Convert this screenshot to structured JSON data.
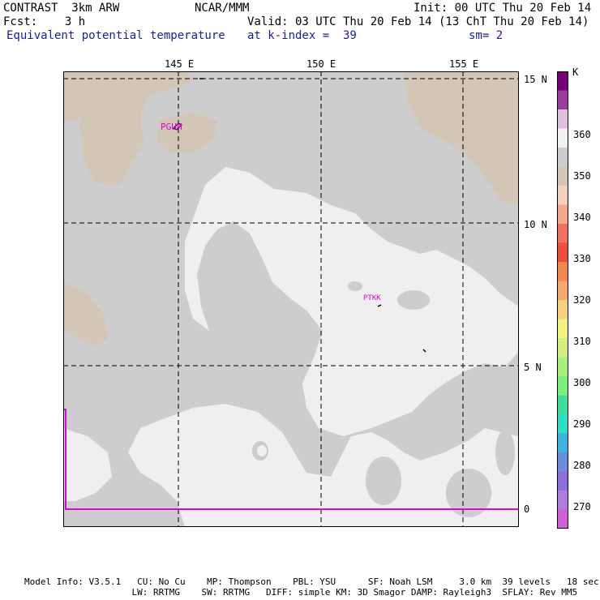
{
  "header": {
    "line1_left": "CONTRAST  3km ARW",
    "line1_center": "NCAR/MMM",
    "line1_right": "Init: 00 UTC Thu 20 Feb 14",
    "line2_left": "Fcst:    3 h",
    "line2_right": "Valid: 03 UTC Thu 20 Feb 14 (13 ChT Thu 20 Feb 14)",
    "line3_left": "Equivalent potential temperature",
    "line3_center": "at k-index =  39",
    "line3_right": "sm= 2"
  },
  "map": {
    "lon_labels": [
      "145 E",
      "150 E",
      "155 E"
    ],
    "lat_labels": [
      "15 N",
      "10 N",
      "5 N",
      "0"
    ],
    "stations": [
      "PGUM",
      "PTKK"
    ],
    "colors": {
      "land_tan": "#d2c6b6",
      "mid_gray": "#cdcdcd",
      "light": "#efefef",
      "station_magenta": "#e000e0"
    }
  },
  "colorbar": {
    "unit": "K",
    "labels": [
      "360",
      "350",
      "340",
      "330",
      "320",
      "310",
      "300",
      "290",
      "280",
      "270"
    ],
    "colors": [
      "#780078",
      "#9c3c9c",
      "#e0c0e0",
      "#f2f2f2",
      "#cdcdcd",
      "#d2c6b6",
      "#f4d2c0",
      "#f4a890",
      "#f27060",
      "#f24c3c",
      "#f4864c",
      "#f4aa6c",
      "#f4d27c",
      "#f4f27c",
      "#d2f07c",
      "#a8f07c",
      "#7cf07c",
      "#3ce09c",
      "#2ce0c8",
      "#3cb4e0",
      "#6c8ce0",
      "#8c70e0",
      "#b07ce0",
      "#d260d2"
    ]
  },
  "footer": {
    "line1": "Model Info: V3.5.1   CU: No Cu    MP: Thompson    PBL: YSU      SF: Noah LSM     3.0 km  39 levels   18 sec",
    "line2": "                    LW: RRTMG    SW: RRTMG   DIFF: simple KM: 3D Smagor DAMP: Rayleigh3  SFLAY: Rev MM5"
  }
}
